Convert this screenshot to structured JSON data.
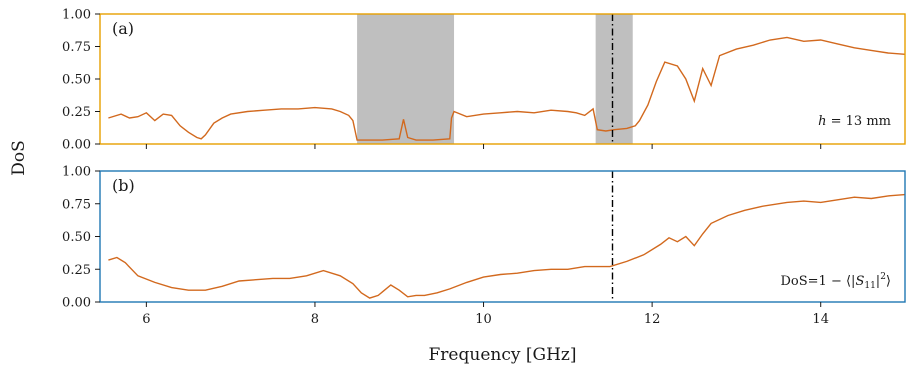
{
  "chart_data": [
    {
      "id": "a",
      "type": "line",
      "panel_label": "(a)",
      "annotation_text": "h = 13 mm",
      "annotation_var": "h",
      "annotation_rest": " = 13 mm",
      "ylabel": "DoS",
      "xlim": [
        5.45,
        15.0
      ],
      "ylim": [
        0.0,
        1.0
      ],
      "yticks": [
        "0.00",
        "0.25",
        "0.50",
        "0.75",
        "1.00"
      ],
      "ytick_values": [
        0.0,
        0.25,
        0.5,
        0.75,
        1.0
      ],
      "xticks": [
        6,
        8,
        10,
        12,
        14
      ],
      "frame_color": "#E69F00",
      "line_color": "#D2691E",
      "shaded_bands": [
        {
          "x0": 8.5,
          "x1": 9.65,
          "color": "#BFBFBF"
        },
        {
          "x0": 11.33,
          "x1": 11.77,
          "color": "#BFBFBF"
        }
      ],
      "vline_x": 11.53,
      "series": [
        {
          "x": [
            5.55,
            5.7,
            5.8,
            5.9,
            6.0,
            6.1,
            6.2,
            6.3,
            6.4,
            6.5,
            6.6,
            6.65,
            6.7,
            6.8,
            6.9,
            7.0,
            7.2,
            7.4,
            7.6,
            7.8,
            8.0,
            8.2,
            8.3,
            8.4,
            8.45,
            8.5,
            8.6,
            8.8,
            9.0,
            9.05,
            9.1,
            9.2,
            9.4,
            9.6,
            9.62,
            9.65,
            9.8,
            10.0,
            10.2,
            10.4,
            10.6,
            10.8,
            11.0,
            11.1,
            11.2,
            11.3,
            11.35,
            11.45,
            11.55,
            11.7,
            11.8,
            11.85,
            11.95,
            12.05,
            12.15,
            12.3,
            12.4,
            12.5,
            12.6,
            12.7,
            12.8,
            13.0,
            13.2,
            13.4,
            13.6,
            13.8,
            14.0,
            14.2,
            14.4,
            14.6,
            14.8,
            15.0
          ],
          "y": [
            0.2,
            0.23,
            0.2,
            0.21,
            0.24,
            0.18,
            0.23,
            0.22,
            0.14,
            0.09,
            0.05,
            0.04,
            0.07,
            0.16,
            0.2,
            0.23,
            0.25,
            0.26,
            0.27,
            0.27,
            0.28,
            0.27,
            0.25,
            0.22,
            0.18,
            0.03,
            0.03,
            0.03,
            0.04,
            0.19,
            0.05,
            0.03,
            0.03,
            0.04,
            0.2,
            0.25,
            0.21,
            0.23,
            0.24,
            0.25,
            0.24,
            0.26,
            0.25,
            0.24,
            0.22,
            0.27,
            0.11,
            0.1,
            0.11,
            0.12,
            0.14,
            0.18,
            0.3,
            0.48,
            0.63,
            0.6,
            0.5,
            0.33,
            0.58,
            0.45,
            0.68,
            0.73,
            0.76,
            0.8,
            0.82,
            0.79,
            0.8,
            0.77,
            0.74,
            0.72,
            0.7,
            0.69
          ]
        }
      ]
    },
    {
      "id": "b",
      "type": "line",
      "panel_label": "(b)",
      "annotation_text": "DoS=1 − ⟨|S11|²⟩",
      "annotation_pre": "DoS=1 − ⟨|",
      "annotation_var": "S",
      "annotation_sub": "11",
      "annotation_post": "|",
      "annotation_sup": "2",
      "annotation_end": "⟩",
      "xlabel": "Frequency [GHz]",
      "xlim": [
        5.45,
        15.0
      ],
      "ylim": [
        0.0,
        1.0
      ],
      "yticks": [
        "0.00",
        "0.25",
        "0.50",
        "0.75",
        "1.00"
      ],
      "ytick_values": [
        0.0,
        0.25,
        0.5,
        0.75,
        1.0
      ],
      "xticks": [
        6,
        8,
        10,
        12,
        14
      ],
      "xtick_labels": [
        "6",
        "8",
        "10",
        "12",
        "14"
      ],
      "frame_color": "#1f77b4",
      "line_color": "#D2691E",
      "vline_x": 11.53,
      "series": [
        {
          "x": [
            5.55,
            5.65,
            5.75,
            5.9,
            6.1,
            6.3,
            6.5,
            6.7,
            6.9,
            7.1,
            7.3,
            7.5,
            7.7,
            7.9,
            8.1,
            8.3,
            8.45,
            8.55,
            8.65,
            8.75,
            8.9,
            9.0,
            9.1,
            9.2,
            9.3,
            9.45,
            9.6,
            9.8,
            10.0,
            10.2,
            10.4,
            10.6,
            10.8,
            11.0,
            11.2,
            11.4,
            11.5,
            11.7,
            11.9,
            12.1,
            12.2,
            12.3,
            12.4,
            12.5,
            12.6,
            12.7,
            12.9,
            13.1,
            13.3,
            13.6,
            13.8,
            14.0,
            14.2,
            14.4,
            14.6,
            14.8,
            15.0
          ],
          "y": [
            0.32,
            0.34,
            0.3,
            0.2,
            0.15,
            0.11,
            0.09,
            0.09,
            0.12,
            0.16,
            0.17,
            0.18,
            0.18,
            0.2,
            0.24,
            0.2,
            0.14,
            0.07,
            0.03,
            0.05,
            0.13,
            0.09,
            0.04,
            0.05,
            0.05,
            0.07,
            0.1,
            0.15,
            0.19,
            0.21,
            0.22,
            0.24,
            0.25,
            0.25,
            0.27,
            0.27,
            0.27,
            0.31,
            0.36,
            0.44,
            0.49,
            0.46,
            0.5,
            0.43,
            0.52,
            0.6,
            0.66,
            0.7,
            0.73,
            0.76,
            0.77,
            0.76,
            0.78,
            0.8,
            0.79,
            0.81,
            0.82
          ]
        }
      ]
    }
  ]
}
